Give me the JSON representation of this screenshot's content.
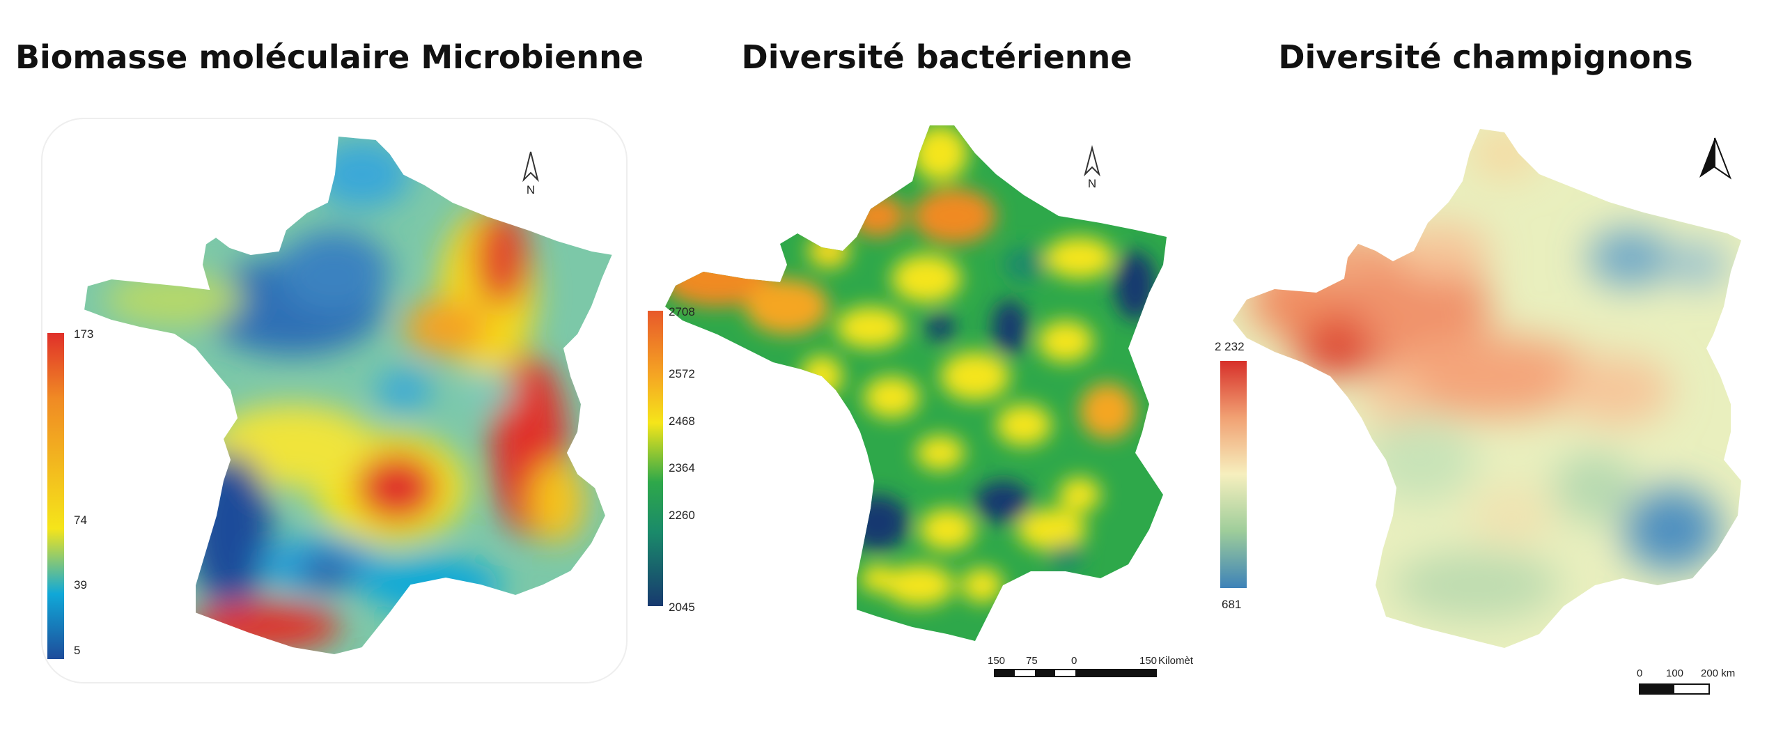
{
  "maps": [
    {
      "title": "Biomasse moléculaire Microbienne",
      "north": "N",
      "legend": {
        "ticks": [
          "173",
          "74",
          "39",
          "5"
        ],
        "colors": [
          "#e0302a",
          "#f08a24",
          "#f5e51a",
          "#10a8d8",
          "#1e4c9a"
        ]
      }
    },
    {
      "title": "Diversité bactérienne",
      "north": "N",
      "legend": {
        "ticks": [
          "2708",
          "2572",
          "2468",
          "2364",
          "2260",
          "2045"
        ],
        "colors": [
          "#e8592a",
          "#f5a623",
          "#f5e51a",
          "#2ea84a",
          "#1a8a6a",
          "#17396f"
        ]
      },
      "scalebar": {
        "labels": [
          "150",
          "75",
          "0",
          "150",
          "Kilomèt"
        ]
      }
    },
    {
      "title": "Diversité champignons",
      "legend": {
        "ticks": [
          "2 232",
          "681"
        ],
        "colors": [
          "#d7302a",
          "#f1a173",
          "#f6efbe",
          "#9ecd9a",
          "#3d82b8"
        ]
      },
      "scalebar": {
        "labels": [
          "0",
          "100",
          "200 km"
        ]
      }
    }
  ]
}
